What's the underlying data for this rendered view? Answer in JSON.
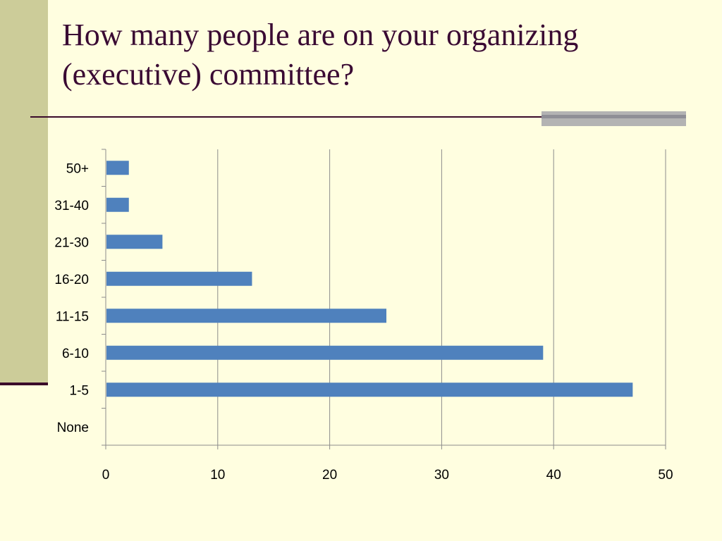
{
  "slide": {
    "title": "How many people are on your organizing\n(executive) committee?"
  },
  "colors": {
    "background": "#FFFEE0",
    "side_bar": "#CCCC99",
    "title_text": "#3A0A33",
    "bar_fill": "#4F81BD",
    "gridline": "#8C8C8C"
  },
  "chart_data": {
    "type": "bar",
    "orientation": "horizontal",
    "categories": [
      "None",
      "1-5",
      "6-10",
      "11-15",
      "16-20",
      "21-30",
      "31-40",
      "50+"
    ],
    "values": [
      0,
      47,
      39,
      25,
      13,
      5,
      2,
      2
    ],
    "title": "",
    "xlabel": "",
    "ylabel": "",
    "xlim": [
      0,
      50
    ],
    "x_ticks": [
      0,
      10,
      20,
      30,
      40,
      50
    ],
    "grid": "vertical major gridlines",
    "legend": "none"
  }
}
